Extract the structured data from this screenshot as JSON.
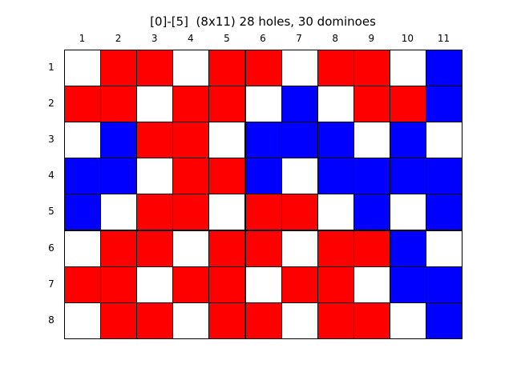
{
  "title": "[0]-[5]  (8x11) 28 holes, 30 dominoes",
  "columns": [
    "1",
    "2",
    "3",
    "4",
    "5",
    "6",
    "7",
    "8",
    "9",
    "10",
    "11"
  ],
  "rows": [
    "1",
    "2",
    "3",
    "4",
    "5",
    "6",
    "7",
    "8"
  ],
  "colors": {
    "W": "#ffffff",
    "R": "#ff0000",
    "B": "#0000ff",
    "grid": "#000000"
  },
  "grid": [
    [
      "W",
      "R",
      "R",
      "W",
      "R",
      "R",
      "W",
      "R",
      "R",
      "W",
      "B"
    ],
    [
      "R",
      "R",
      "W",
      "R",
      "R",
      "W",
      "B",
      "W",
      "R",
      "R",
      "B"
    ],
    [
      "W",
      "B",
      "R",
      "R",
      "W",
      "B",
      "B",
      "B",
      "W",
      "B",
      "W"
    ],
    [
      "B",
      "B",
      "W",
      "R",
      "R",
      "B",
      "W",
      "B",
      "B",
      "B",
      "B"
    ],
    [
      "B",
      "W",
      "R",
      "R",
      "W",
      "R",
      "R",
      "W",
      "B",
      "W",
      "B"
    ],
    [
      "W",
      "R",
      "R",
      "W",
      "R",
      "R",
      "W",
      "R",
      "R",
      "B",
      "W"
    ],
    [
      "R",
      "R",
      "W",
      "R",
      "R",
      "W",
      "R",
      "R",
      "W",
      "B",
      "B"
    ],
    [
      "W",
      "R",
      "R",
      "W",
      "R",
      "R",
      "W",
      "R",
      "R",
      "W",
      "B"
    ]
  ]
}
